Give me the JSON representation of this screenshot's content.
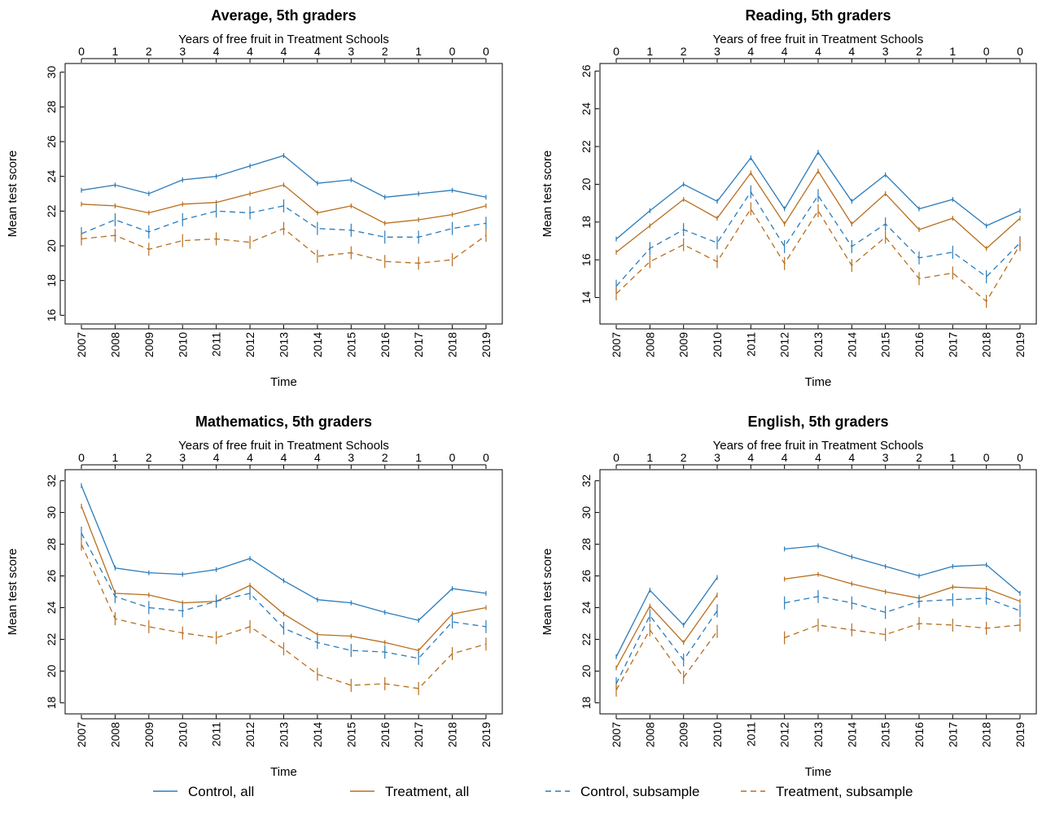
{
  "legend": [
    {
      "label": "Control, all",
      "color": "#2b7bba",
      "dash": "solid"
    },
    {
      "label": "Treatment, all",
      "color": "#b86e1e",
      "dash": "solid"
    },
    {
      "label": "Control, subsample",
      "color": "#2b7bba",
      "dash": "dashed"
    },
    {
      "label": "Treatment, subsample",
      "color": "#b86e1e",
      "dash": "dashed"
    }
  ],
  "chart_data": [
    {
      "type": "line",
      "title": "Average, 5th graders",
      "top_axis_label": "Years of free fruit in Treatment Schools",
      "top_ticks": [
        "0",
        "1",
        "2",
        "3",
        "4",
        "4",
        "4",
        "4",
        "3",
        "2",
        "1",
        "0",
        "0"
      ],
      "xlabel": "Time",
      "ylabel": "Mean test score",
      "x": [
        "2007",
        "2008",
        "2009",
        "2010",
        "2011",
        "2012",
        "2013",
        "2014",
        "2015",
        "2016",
        "2017",
        "2018",
        "2019"
      ],
      "ylim": [
        15.5,
        30.5
      ],
      "yticks": [
        16,
        18,
        20,
        22,
        24,
        26,
        28,
        30
      ],
      "series": [
        {
          "name": "Control, all",
          "values": [
            23.2,
            23.5,
            23.0,
            23.8,
            24.0,
            24.6,
            25.2,
            23.6,
            23.8,
            22.8,
            23.0,
            23.2,
            22.8
          ]
        },
        {
          "name": "Treatment, all",
          "values": [
            22.4,
            22.3,
            21.9,
            22.4,
            22.5,
            23.0,
            23.5,
            21.9,
            22.3,
            21.3,
            21.5,
            21.8,
            22.3
          ]
        },
        {
          "name": "Control, subsample",
          "values": [
            20.7,
            21.5,
            20.8,
            21.5,
            22.0,
            21.9,
            22.3,
            21.0,
            20.9,
            20.5,
            20.5,
            21.0,
            21.3
          ]
        },
        {
          "name": "Treatment, subsample",
          "values": [
            20.4,
            20.6,
            19.8,
            20.3,
            20.4,
            20.2,
            21.0,
            19.4,
            19.6,
            19.1,
            19.0,
            19.2,
            20.6
          ]
        }
      ]
    },
    {
      "type": "line",
      "title": "Reading, 5th graders",
      "top_axis_label": "Years of free fruit in Treatment Schools",
      "top_ticks": [
        "0",
        "1",
        "2",
        "3",
        "4",
        "4",
        "4",
        "4",
        "3",
        "2",
        "1",
        "0",
        "0"
      ],
      "xlabel": "Time",
      "ylabel": "Mean test score",
      "x": [
        "2007",
        "2008",
        "2009",
        "2010",
        "2011",
        "2012",
        "2013",
        "2014",
        "2015",
        "2016",
        "2017",
        "2018",
        "2019"
      ],
      "ylim": [
        12.6,
        26.4
      ],
      "yticks": [
        14,
        16,
        18,
        20,
        22,
        24,
        26
      ],
      "series": [
        {
          "name": "Control, all",
          "values": [
            17.1,
            18.6,
            20.0,
            19.1,
            21.4,
            18.7,
            21.7,
            19.1,
            20.5,
            18.7,
            19.2,
            17.8,
            18.6
          ]
        },
        {
          "name": "Treatment, all",
          "values": [
            16.4,
            17.8,
            19.2,
            18.2,
            20.6,
            17.9,
            20.7,
            17.9,
            19.5,
            17.6,
            18.2,
            16.6,
            18.2
          ]
        },
        {
          "name": "Control, subsample",
          "values": [
            14.6,
            16.6,
            17.6,
            16.9,
            19.6,
            16.7,
            19.4,
            16.7,
            17.9,
            16.1,
            16.4,
            15.1,
            16.9
          ]
        },
        {
          "name": "Treatment, subsample",
          "values": [
            14.2,
            15.9,
            16.8,
            15.9,
            18.7,
            15.8,
            18.6,
            15.7,
            17.2,
            15.0,
            15.3,
            13.8,
            16.8
          ]
        }
      ]
    },
    {
      "type": "line",
      "title": "Mathematics, 5th graders",
      "top_axis_label": "Years of free fruit in Treatment Schools",
      "top_ticks": [
        "0",
        "1",
        "2",
        "3",
        "4",
        "4",
        "4",
        "4",
        "3",
        "2",
        "1",
        "0",
        "0"
      ],
      "xlabel": "Time",
      "ylabel": "Mean test score",
      "x": [
        "2007",
        "2008",
        "2009",
        "2010",
        "2011",
        "2012",
        "2013",
        "2014",
        "2015",
        "2016",
        "2017",
        "2018",
        "2019"
      ],
      "ylim": [
        17.3,
        32.7
      ],
      "yticks": [
        18,
        20,
        22,
        24,
        26,
        28,
        30,
        32
      ],
      "series": [
        {
          "name": "Control, all",
          "values": [
            31.7,
            26.5,
            26.2,
            26.1,
            26.4,
            27.1,
            25.7,
            24.5,
            24.3,
            23.7,
            23.2,
            25.2,
            24.9
          ]
        },
        {
          "name": "Treatment, all",
          "values": [
            30.4,
            24.9,
            24.8,
            24.3,
            24.4,
            25.4,
            23.6,
            22.3,
            22.2,
            21.8,
            21.3,
            23.6,
            24.0
          ]
        },
        {
          "name": "Control, subsample",
          "values": [
            28.7,
            24.7,
            24.0,
            23.8,
            24.4,
            24.9,
            22.7,
            21.8,
            21.3,
            21.2,
            20.8,
            23.1,
            22.8
          ]
        },
        {
          "name": "Treatment, subsample",
          "values": [
            28.0,
            23.3,
            22.8,
            22.4,
            22.1,
            22.8,
            21.4,
            19.8,
            19.1,
            19.2,
            18.9,
            21.1,
            21.7
          ]
        }
      ]
    },
    {
      "type": "line",
      "title": "English, 5th graders",
      "top_axis_label": "Years of free fruit in Treatment Schools",
      "top_ticks": [
        "0",
        "1",
        "2",
        "3",
        "4",
        "4",
        "4",
        "4",
        "3",
        "2",
        "1",
        "0",
        "0"
      ],
      "xlabel": "Time",
      "ylabel": "Mean test score",
      "x": [
        "2007",
        "2008",
        "2009",
        "2010",
        "2011",
        "2012",
        "2013",
        "2014",
        "2015",
        "2016",
        "2017",
        "2018",
        "2019"
      ],
      "ylim": [
        17.3,
        32.7
      ],
      "yticks": [
        18,
        20,
        22,
        24,
        26,
        28,
        30,
        32
      ],
      "series": [
        {
          "name": "Control, all",
          "values": [
            20.9,
            25.1,
            22.9,
            25.9,
            null,
            27.7,
            27.9,
            27.2,
            26.6,
            26.0,
            26.6,
            26.7,
            24.9
          ]
        },
        {
          "name": "Treatment, all",
          "values": [
            20.2,
            24.1,
            21.8,
            24.8,
            null,
            25.8,
            26.1,
            25.5,
            25.0,
            24.6,
            25.3,
            25.2,
            24.4
          ]
        },
        {
          "name": "Control, subsample",
          "values": [
            19.2,
            23.5,
            20.7,
            23.8,
            null,
            24.3,
            24.7,
            24.3,
            23.7,
            24.4,
            24.5,
            24.6,
            23.8
          ]
        },
        {
          "name": "Treatment, subsample",
          "values": [
            18.8,
            22.6,
            19.6,
            22.5,
            null,
            22.1,
            22.9,
            22.6,
            22.3,
            23.0,
            22.9,
            22.7,
            22.9
          ]
        }
      ]
    }
  ]
}
